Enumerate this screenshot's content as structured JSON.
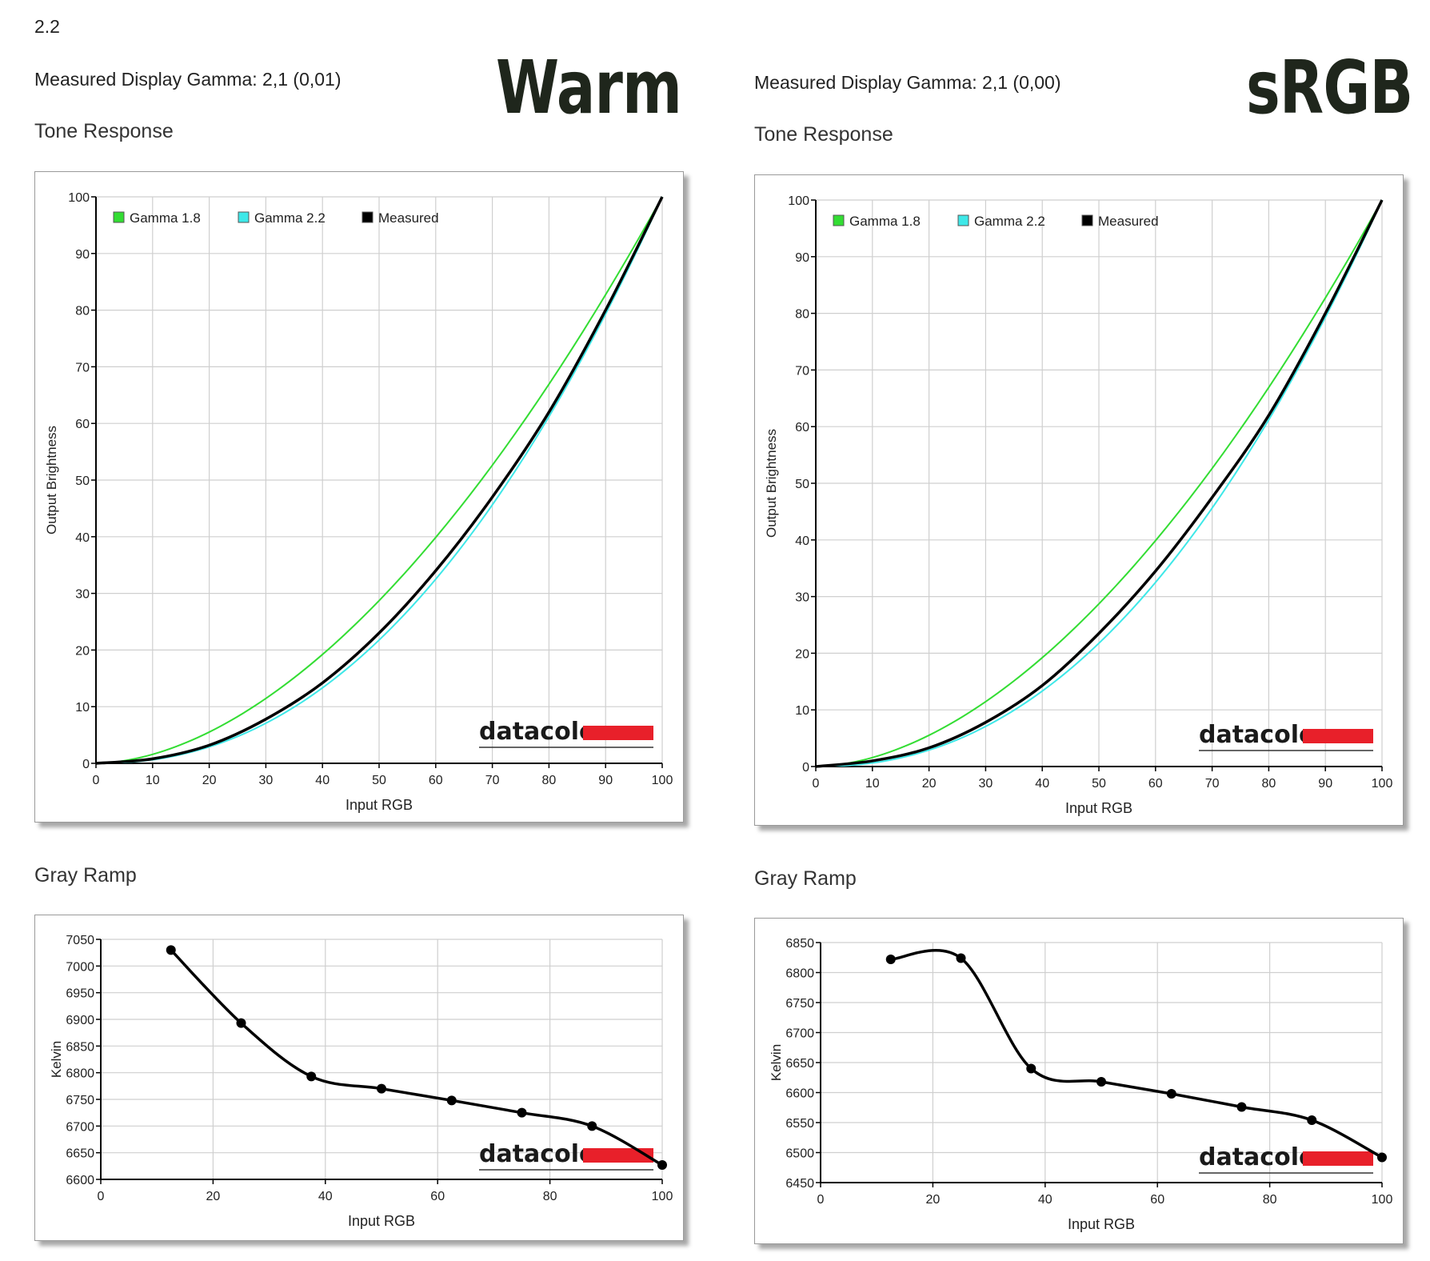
{
  "page": {
    "version": "2.2",
    "colors": {
      "gamma18": "#33dd33",
      "gamma22": "#3ee8e8",
      "measured": "#000000",
      "brand_red": "#e8202a"
    }
  },
  "panels": [
    {
      "badge": "Warm",
      "measured_gamma": "Measured Display Gamma: 2,1 (0,01)",
      "tone_heading": "Tone Response",
      "gray_heading": "Gray Ramp"
    },
    {
      "badge": "sRGB",
      "measured_gamma": "Measured Display Gamma: 2,1 (0,00)",
      "tone_heading": "Tone Response",
      "gray_heading": "Gray Ramp"
    }
  ],
  "chart_data": [
    {
      "type": "line",
      "panel": "Warm",
      "xlabel": "Input RGB",
      "ylabel": "Output Brightness",
      "xlim": [
        0,
        100
      ],
      "ylim": [
        0,
        100
      ],
      "xticks": [
        "0",
        "10",
        "20",
        "30",
        "40",
        "50",
        "60",
        "70",
        "80",
        "90",
        "100"
      ],
      "yticks": [
        "0",
        "10",
        "20",
        "30",
        "40",
        "50",
        "60",
        "70",
        "80",
        "90",
        "100"
      ],
      "grid": true,
      "legend_position": "top-left",
      "watermark": "datacolor",
      "series": [
        {
          "name": "Gamma 1.8",
          "color": "#33dd33",
          "function": "gamma",
          "gamma": 1.8
        },
        {
          "name": "Gamma 2.2",
          "color": "#3ee8e8",
          "function": "gamma",
          "gamma": 2.2
        },
        {
          "name": "Measured",
          "color": "#000000",
          "x": [
            0,
            10,
            20,
            30,
            40,
            50,
            60,
            70,
            80,
            90,
            100
          ],
          "y": [
            0,
            0.8,
            3.2,
            7.8,
            14.2,
            23.0,
            34.0,
            47.0,
            62.0,
            80.0,
            100
          ]
        }
      ]
    },
    {
      "type": "line",
      "panel": "sRGB",
      "xlabel": "Input RGB",
      "ylabel": "Output Brightness",
      "xlim": [
        0,
        100
      ],
      "ylim": [
        0,
        100
      ],
      "xticks": [
        "0",
        "10",
        "20",
        "30",
        "40",
        "50",
        "60",
        "70",
        "80",
        "90",
        "100"
      ],
      "yticks": [
        "0",
        "10",
        "20",
        "30",
        "40",
        "50",
        "60",
        "70",
        "80",
        "90",
        "100"
      ],
      "grid": true,
      "legend_position": "top-left",
      "watermark": "datacolor",
      "series": [
        {
          "name": "Gamma 1.8",
          "color": "#33dd33",
          "function": "gamma",
          "gamma": 1.8
        },
        {
          "name": "Gamma 2.2",
          "color": "#3ee8e8",
          "function": "gamma",
          "gamma": 2.2
        },
        {
          "name": "Measured",
          "color": "#000000",
          "x": [
            0,
            10,
            20,
            30,
            40,
            50,
            60,
            70,
            80,
            90,
            100
          ],
          "y": [
            0,
            1.0,
            3.3,
            7.8,
            14.3,
            23.5,
            34.5,
            47.5,
            62.0,
            80.0,
            100
          ]
        }
      ]
    },
    {
      "type": "line",
      "panel": "Warm",
      "xlabel": "Input RGB",
      "ylabel": "Kelvin",
      "xlim": [
        0,
        100
      ],
      "ylim": [
        6600,
        7050
      ],
      "xticks": [
        "0",
        "20",
        "40",
        "60",
        "80",
        "100"
      ],
      "yticks": [
        "6600",
        "6650",
        "6700",
        "6750",
        "6800",
        "6850",
        "6900",
        "6950",
        "7000",
        "7050"
      ],
      "grid": true,
      "watermark": "datacolor",
      "series": [
        {
          "name": "",
          "color": "#000000",
          "x": [
            12.5,
            25,
            37.5,
            50,
            62.5,
            75,
            87.5,
            100
          ],
          "y": [
            7030,
            6893,
            6793,
            6770,
            6748,
            6725,
            6700,
            6627
          ]
        }
      ]
    },
    {
      "type": "line",
      "panel": "sRGB",
      "xlabel": "Input RGB",
      "ylabel": "Kelvin",
      "xlim": [
        0,
        100
      ],
      "ylim": [
        6450,
        6850
      ],
      "xticks": [
        "0",
        "20",
        "40",
        "60",
        "80",
        "100"
      ],
      "yticks": [
        "6450",
        "6500",
        "6550",
        "6600",
        "6650",
        "6700",
        "6750",
        "6800",
        "6850"
      ],
      "grid": true,
      "watermark": "datacolor",
      "series": [
        {
          "name": "",
          "color": "#000000",
          "x": [
            12.5,
            25,
            37.5,
            50,
            62.5,
            75,
            87.5,
            100
          ],
          "y": [
            6822,
            6824,
            6640,
            6618,
            6598,
            6576,
            6554,
            6492
          ]
        }
      ]
    }
  ]
}
